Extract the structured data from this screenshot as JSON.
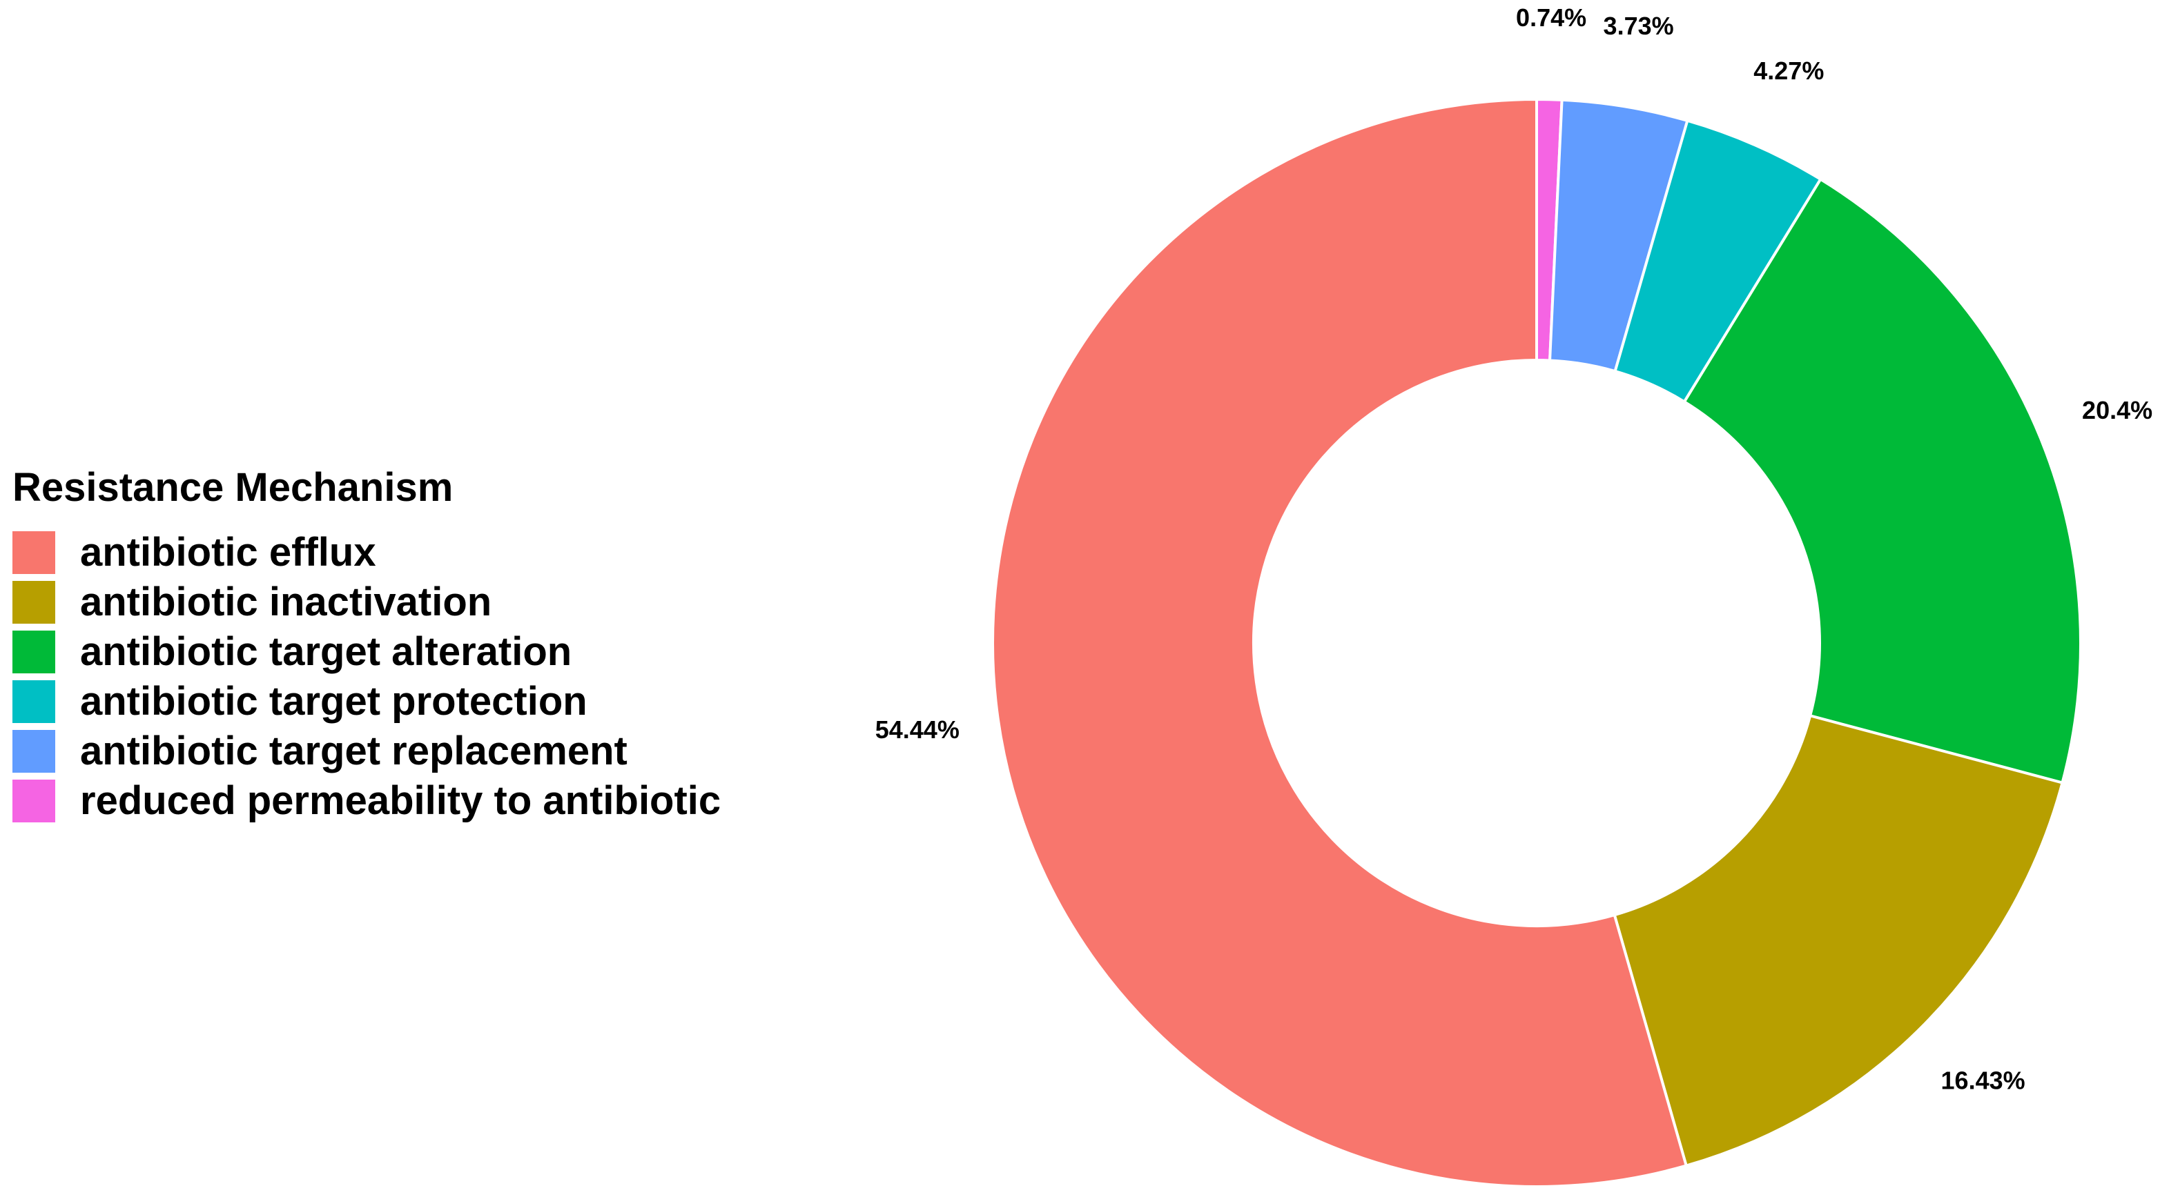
{
  "chart_data": {
    "type": "pie",
    "legend": {
      "title": "Resistance Mechanism",
      "position": "left"
    },
    "slices": [
      {
        "name": "antibiotic efflux",
        "value": 54.44,
        "label": "54.44%",
        "color": "#F8766D"
      },
      {
        "name": "antibiotic inactivation",
        "value": 16.43,
        "label": "16.43%",
        "color": "#B79F00"
      },
      {
        "name": "antibiotic target alteration",
        "value": 20.4,
        "label": "20.4%",
        "color": "#00BA38"
      },
      {
        "name": "antibiotic target protection",
        "value": 4.27,
        "label": "4.27%",
        "color": "#00BFC4"
      },
      {
        "name": "antibiotic target replacement",
        "value": 3.73,
        "label": "3.73%",
        "color": "#619CFF"
      },
      {
        "name": "reduced permeability to antibiotic",
        "value": 0.74,
        "label": "0.74%",
        "color": "#F564E3"
      }
    ],
    "clockwise_order_from_top": [
      "reduced permeability to antibiotic",
      "antibiotic target replacement",
      "antibiotic target protection",
      "antibiotic target alteration",
      "antibiotic inactivation",
      "antibiotic efflux"
    ],
    "donut": true,
    "start_angle": "top",
    "direction": "clockwise"
  }
}
